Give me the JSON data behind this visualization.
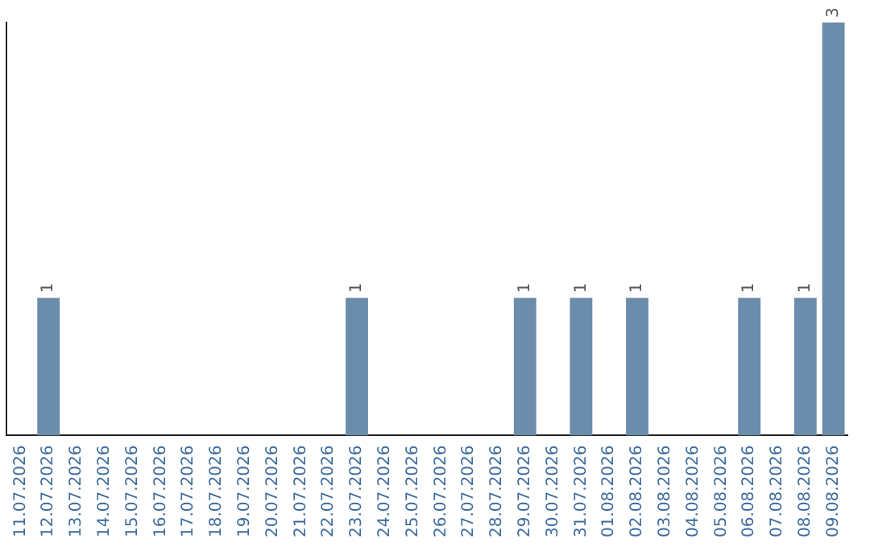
{
  "chart_data": {
    "type": "bar",
    "categories": [
      "11.07.2026",
      "12.07.2026",
      "13.07.2026",
      "14.07.2026",
      "15.07.2026",
      "16.07.2026",
      "17.07.2026",
      "18.07.2026",
      "19.07.2026",
      "20.07.2026",
      "21.07.2026",
      "22.07.2026",
      "23.07.2026",
      "24.07.2026",
      "25.07.2026",
      "26.07.2026",
      "27.07.2026",
      "28.07.2026",
      "29.07.2026",
      "30.07.2026",
      "31.07.2026",
      "01.08.2026",
      "02.08.2026",
      "03.08.2026",
      "04.08.2026",
      "05.08.2026",
      "06.08.2026",
      "07.08.2026",
      "08.08.2026",
      "09.08.2026"
    ],
    "values": [
      0,
      1,
      0,
      0,
      0,
      0,
      0,
      0,
      0,
      0,
      0,
      0,
      1,
      0,
      0,
      0,
      0,
      0,
      1,
      0,
      1,
      0,
      1,
      0,
      0,
      0,
      1,
      0,
      1,
      3
    ],
    "value_labels": [
      null,
      "1",
      null,
      null,
      null,
      null,
      null,
      null,
      null,
      null,
      null,
      null,
      "1",
      null,
      null,
      null,
      null,
      null,
      "1",
      null,
      "1",
      null,
      "1",
      null,
      null,
      null,
      "1",
      null,
      "1",
      "3"
    ],
    "color": "#6b8cab",
    "grid": false,
    "legend": false,
    "tick_labels": "x"
  }
}
